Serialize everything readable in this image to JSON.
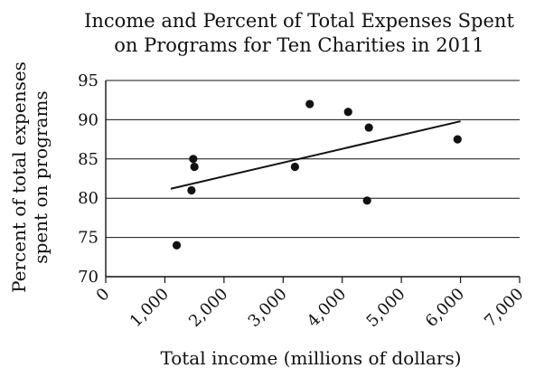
{
  "chart_data": {
    "type": "scatter",
    "title_lines": [
      "Income and Percent of Total Expenses Spent",
      "on Programs for Ten Charities in 2011"
    ],
    "xlabel": "Total income (millions of dollars)",
    "ylabel_lines": [
      "Percent of total expenses",
      "spent on programs"
    ],
    "xlim": [
      0,
      7000
    ],
    "ylim": [
      70,
      95
    ],
    "x_ticks": [
      0,
      1000,
      2000,
      3000,
      4000,
      5000,
      6000,
      7000
    ],
    "x_tick_labels": [
      "0",
      "1,000",
      "2,000",
      "3,000",
      "4,000",
      "5,000",
      "6,000",
      "7,000"
    ],
    "y_ticks": [
      70,
      75,
      80,
      85,
      90,
      95
    ],
    "y_tick_labels": [
      "70",
      "75",
      "80",
      "85",
      "90",
      "95"
    ],
    "grid": "horizontal",
    "legend": "none",
    "points": [
      {
        "x": 1200,
        "y": 74
      },
      {
        "x": 1450,
        "y": 81
      },
      {
        "x": 1480,
        "y": 85
      },
      {
        "x": 1500,
        "y": 84
      },
      {
        "x": 3200,
        "y": 84
      },
      {
        "x": 3450,
        "y": 92
      },
      {
        "x": 4100,
        "y": 91
      },
      {
        "x": 4450,
        "y": 89
      },
      {
        "x": 4420,
        "y": 79.7
      },
      {
        "x": 5950,
        "y": 87.5
      }
    ],
    "trend_line": [
      {
        "x": 1100,
        "y": 81.2
      },
      {
        "x": 6000,
        "y": 89.8
      }
    ],
    "colors": {
      "ink": "#111111",
      "background": "#ffffff"
    }
  }
}
